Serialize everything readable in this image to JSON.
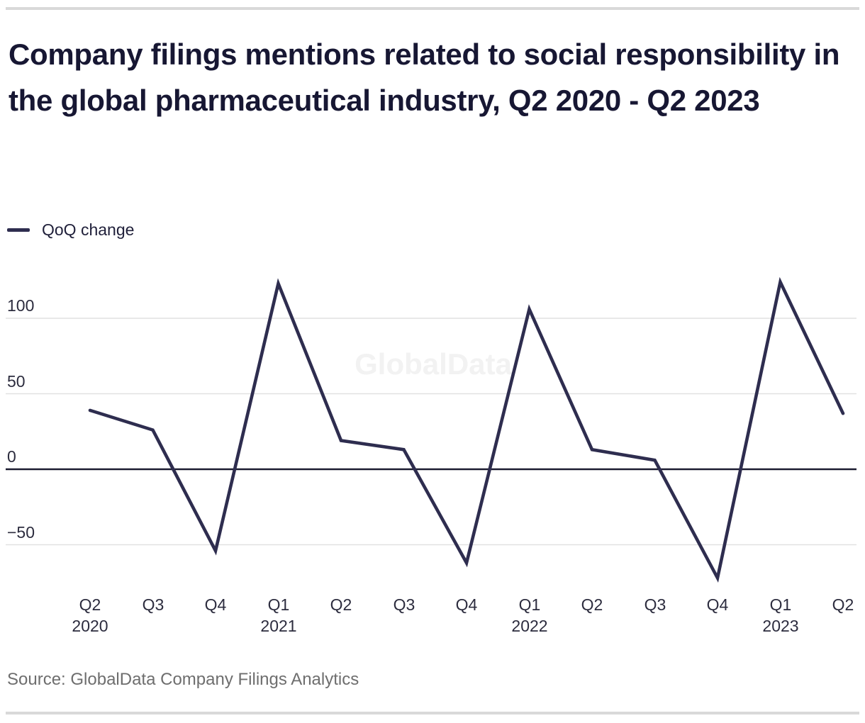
{
  "title": "Company filings mentions related to social responsibility in the global pharmaceutical industry, Q2 2020 - Q2 2023",
  "legend": {
    "label": "QoQ change"
  },
  "source": "Source: GlobalData Company Filings Analytics",
  "colors": {
    "line": "#2e2d4f",
    "title_text": "#171733",
    "tick_text": "#2c2c3e",
    "grid": "#e1e1e1",
    "zero_line": "#1b1b30",
    "divider": "#d9d9d9",
    "source_text": "#6e6e6e",
    "watermark": "#f2f2f2"
  },
  "chart_data": {
    "type": "line",
    "title": "Company filings mentions related to social responsibility in the global pharmaceutical industry, Q2 2020 - Q2 2023",
    "xlabel": "",
    "ylabel": "",
    "grid": "horizontal",
    "legend_position": "top-left",
    "watermark": "GlobalData",
    "ylim": [
      -85,
      135
    ],
    "yticks": [
      {
        "value": 100,
        "label": "100"
      },
      {
        "value": 50,
        "label": "50"
      },
      {
        "value": 0,
        "label": "0"
      },
      {
        "value": -50,
        "label": "−50"
      }
    ],
    "categories": [
      {
        "q": "Q2",
        "year": "2020"
      },
      {
        "q": "Q3"
      },
      {
        "q": "Q4"
      },
      {
        "q": "Q1",
        "year": "2021"
      },
      {
        "q": "Q2"
      },
      {
        "q": "Q3"
      },
      {
        "q": "Q4"
      },
      {
        "q": "Q1",
        "year": "2022"
      },
      {
        "q": "Q2"
      },
      {
        "q": "Q3"
      },
      {
        "q": "Q4"
      },
      {
        "q": "Q1",
        "year": "2023"
      },
      {
        "q": "Q2"
      }
    ],
    "series": [
      {
        "name": "QoQ change",
        "values": [
          39,
          26,
          -54,
          123,
          19,
          13,
          -62,
          106,
          13,
          6,
          -72,
          124,
          37
        ]
      }
    ]
  }
}
